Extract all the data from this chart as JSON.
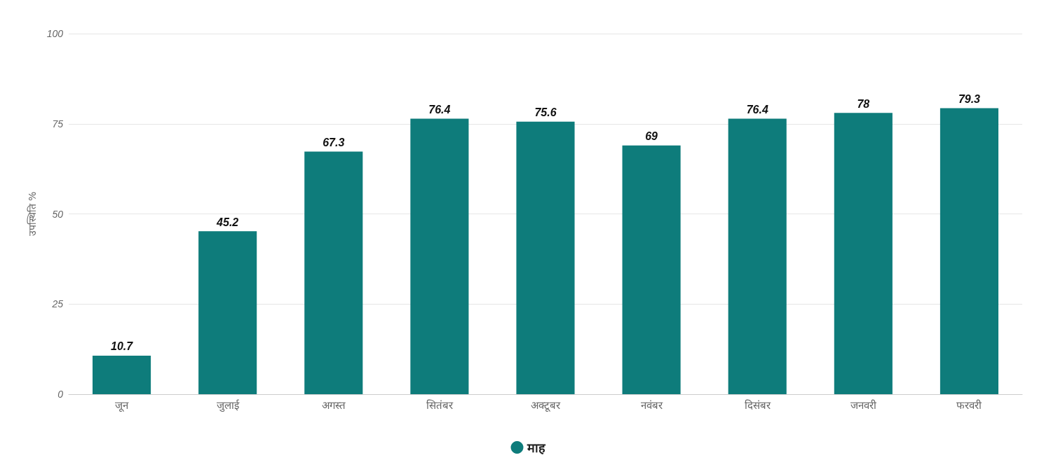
{
  "chart_data": {
    "type": "bar",
    "ylabel": "उपस्थिति %",
    "categories": [
      "जून",
      "जुलाई",
      "अगस्त",
      "सितंबर",
      "अक्टूबर",
      "नवंबर",
      "दिसंबर",
      "जनवरी",
      "फरवरी"
    ],
    "series": [
      {
        "name": "माह",
        "color": "#0e7c7b",
        "values": [
          10.7,
          45.2,
          67.3,
          76.4,
          75.6,
          69,
          76.4,
          78,
          79.3
        ]
      }
    ],
    "ylim": [
      0,
      100
    ],
    "yticks": [
      0,
      25,
      50,
      75,
      100
    ],
    "grid": "y",
    "legend": "bottom",
    "data_labels": true
  }
}
